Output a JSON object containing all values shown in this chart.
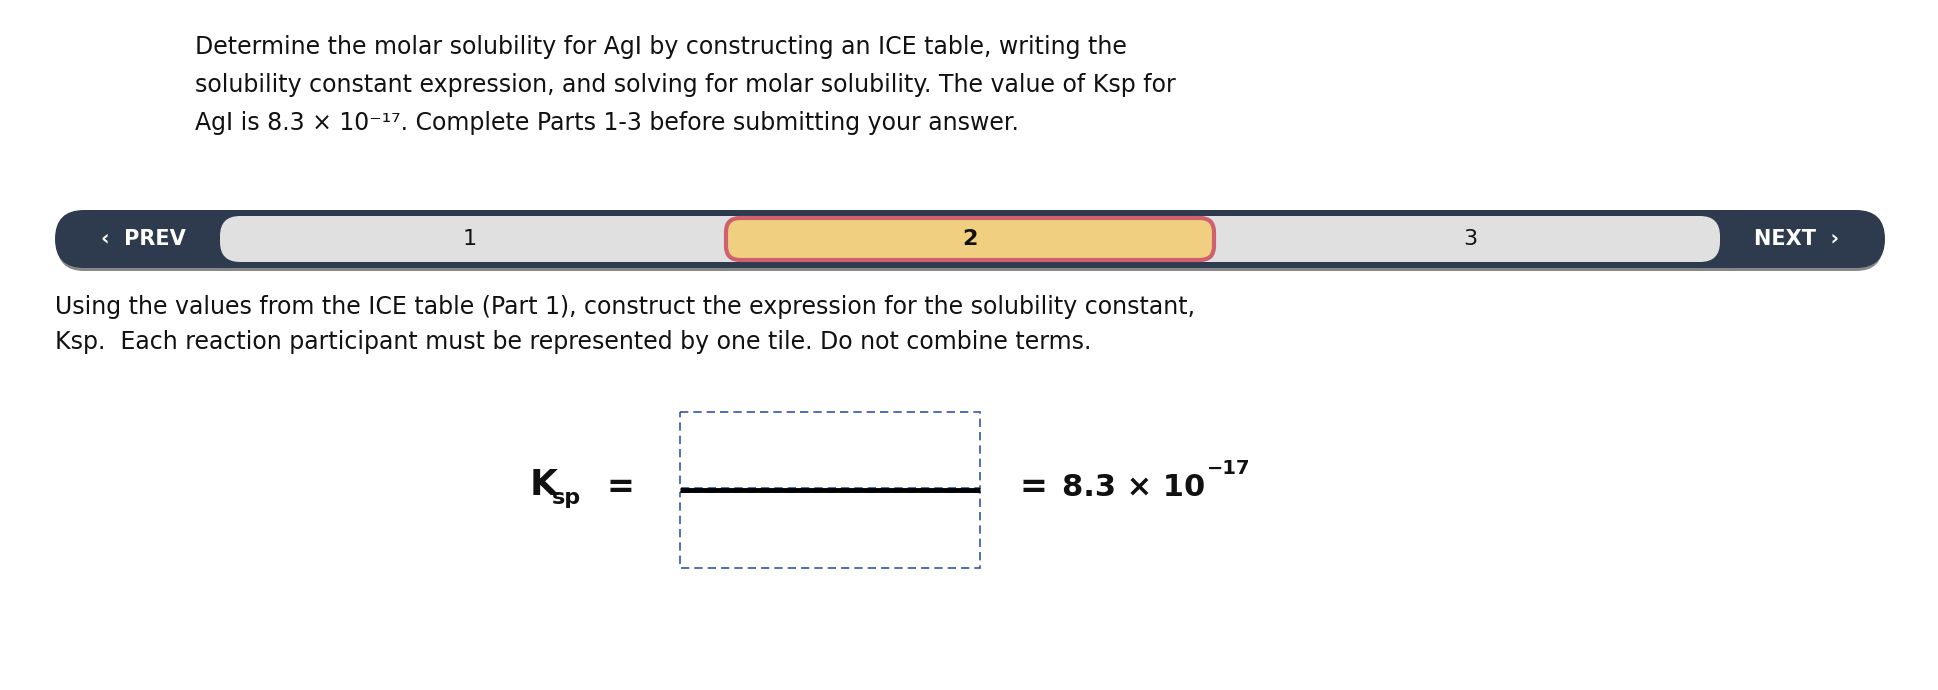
{
  "bg_color": "#ffffff",
  "title_lines": [
    "Determine the molar solubility for AgI by constructing an ICE table, writing the",
    "solubility constant expression, and solving for molar solubility. The value of Ksp for",
    "AgI is 8.3 × 10⁻¹⁷. Complete Parts 1-3 before submitting your answer."
  ],
  "nav_bar": {
    "bar_color": "#2e3a4e",
    "inner_color": "#e0e0e0",
    "active_color": "#f0d080",
    "active_border": "#d06070",
    "prev_text": "PREV",
    "next_text": "NEXT",
    "steps": [
      "1",
      "2",
      "3"
    ],
    "active_step": 1
  },
  "body_lines": [
    "Using the values from the ICE table (Part 1), construct the expression for the solubility constant,",
    "Ksp.  Each reaction participant must be represented by one tile. Do not combine terms."
  ],
  "fraction_line_color": "#000000",
  "box_border_color": "#3355aa",
  "title_font_size": 17,
  "body_font_size": 17,
  "nav_font_size": 15,
  "eq_font_size": 22,
  "result_font_size": 22
}
